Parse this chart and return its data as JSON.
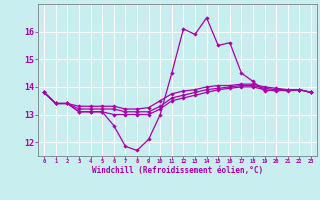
{
  "xlabel": "Windchill (Refroidissement éolien,°C)",
  "background_color": "#c8eef0",
  "line_color": "#aa00aa",
  "grid_color": "#ffffff",
  "x_values": [
    0,
    1,
    2,
    3,
    4,
    5,
    6,
    7,
    8,
    9,
    10,
    11,
    12,
    13,
    14,
    15,
    16,
    17,
    18,
    19,
    20,
    21,
    22,
    23
  ],
  "series1": [
    13.8,
    13.4,
    13.4,
    13.1,
    13.1,
    13.1,
    12.6,
    11.85,
    11.7,
    12.1,
    13.0,
    14.5,
    16.1,
    15.9,
    16.5,
    15.5,
    15.6,
    14.5,
    14.2,
    13.85,
    13.9,
    13.85,
    13.9,
    13.8
  ],
  "series2": [
    13.8,
    13.4,
    13.4,
    13.1,
    13.1,
    13.1,
    13.0,
    13.0,
    13.0,
    13.0,
    13.2,
    13.5,
    13.6,
    13.7,
    13.8,
    13.9,
    13.95,
    14.0,
    14.0,
    13.9,
    13.85,
    13.9,
    13.9,
    13.8
  ],
  "series3": [
    13.8,
    13.4,
    13.4,
    13.2,
    13.2,
    13.2,
    13.2,
    13.1,
    13.1,
    13.1,
    13.3,
    13.6,
    13.7,
    13.8,
    13.9,
    13.95,
    14.0,
    14.05,
    14.05,
    13.95,
    13.9,
    13.9,
    13.9,
    13.8
  ],
  "series4": [
    13.8,
    13.4,
    13.4,
    13.3,
    13.3,
    13.3,
    13.3,
    13.2,
    13.2,
    13.25,
    13.5,
    13.75,
    13.85,
    13.9,
    14.0,
    14.05,
    14.05,
    14.1,
    14.1,
    14.0,
    13.95,
    13.9,
    13.9,
    13.8
  ],
  "ylim": [
    11.5,
    17.0
  ],
  "yticks": [
    12,
    13,
    14,
    15,
    16
  ],
  "xticks": [
    0,
    1,
    2,
    3,
    4,
    5,
    6,
    7,
    8,
    9,
    10,
    11,
    12,
    13,
    14,
    15,
    16,
    17,
    18,
    19,
    20,
    21,
    22,
    23
  ]
}
